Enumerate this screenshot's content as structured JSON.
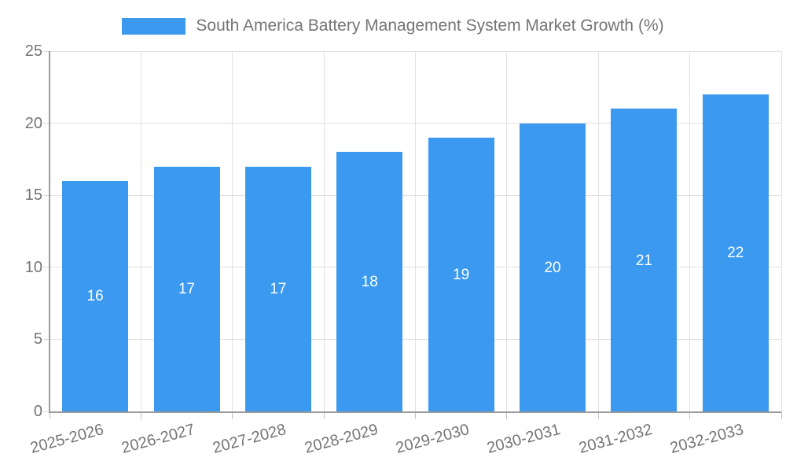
{
  "chart_data": {
    "type": "bar",
    "title": "South America Battery Management System Market Growth (%)",
    "categories": [
      "2025-2026",
      "2026-2027",
      "2027-2028",
      "2028-2029",
      "2029-2030",
      "2030-2031",
      "2031-2032",
      "2032-2033"
    ],
    "values": [
      16,
      17,
      17,
      18,
      19,
      20,
      21,
      22
    ],
    "value_labels": [
      "16",
      "17",
      "17",
      "18",
      "19",
      "20",
      "21",
      "22"
    ],
    "ytick_labels": [
      "0",
      "5",
      "10",
      "15",
      "20",
      "25"
    ],
    "yticks": [
      0,
      5,
      10,
      15,
      20,
      25
    ],
    "ylim": [
      0,
      25
    ],
    "xlabel": "",
    "ylabel": "",
    "grid": true,
    "legend_position": "top-center",
    "x_label_rotation_deg": -15,
    "colors": {
      "bar": "#3b99ef",
      "value_label": "#ffffff",
      "axis_text": "#757575",
      "grid_line": "#e2e2e2",
      "axis_line": "#9b9b9b",
      "background": "#ffffff"
    }
  }
}
